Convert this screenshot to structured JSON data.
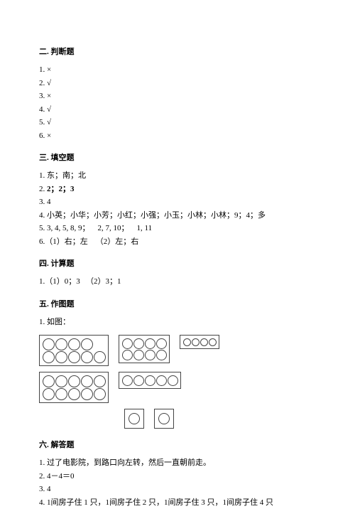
{
  "s2": {
    "title": "二. 判断题",
    "a1": "1. ×",
    "a2": "2. √",
    "a3": "3. ×",
    "a4": "4. √",
    "a5": "5. √",
    "a6": "6. ×"
  },
  "s3": {
    "title": "三. 填空题",
    "a1": "1. 东；南；北",
    "a2a": "2. ",
    "a2b": "2；2；3",
    "a3": "3. 4",
    "a4": "4. 小英；小华；小芳；小红；小强；小玉；小林；小林；9；4；多",
    "a5": "5. 3, 4, 5, 8, 9；    2, 7, 10；    1, 11",
    "a6": "6.（1）右；左    （2）左；右"
  },
  "s4": {
    "title": "四. 计算题",
    "a1": "1.（1）0；3   （2）3；1"
  },
  "s5": {
    "title": "五. 作图题",
    "a1": "1. 如图："
  },
  "s6": {
    "title": "六. 解答题",
    "a1": "1. 过了电影院，到路口向左转，然后一直朝前走。",
    "a2": "2. 4－4＝0",
    "a3": "3. 4",
    "a4": "4. 1间房子住 1 只，1间房子住 2 只，1间房子住 3 只，1间房子住 4 只"
  },
  "fig": {
    "r1": [
      {
        "rows": [
          4,
          5
        ],
        "size": "lg"
      },
      {
        "rows": [
          4,
          4
        ],
        "size": "md"
      },
      {
        "rows": [
          4
        ],
        "size": "sm"
      }
    ],
    "r2": [
      {
        "rows": [
          5,
          5
        ],
        "size": "lg"
      },
      {
        "rows": [
          5
        ],
        "size": "md"
      }
    ],
    "r3_singles": 2
  }
}
